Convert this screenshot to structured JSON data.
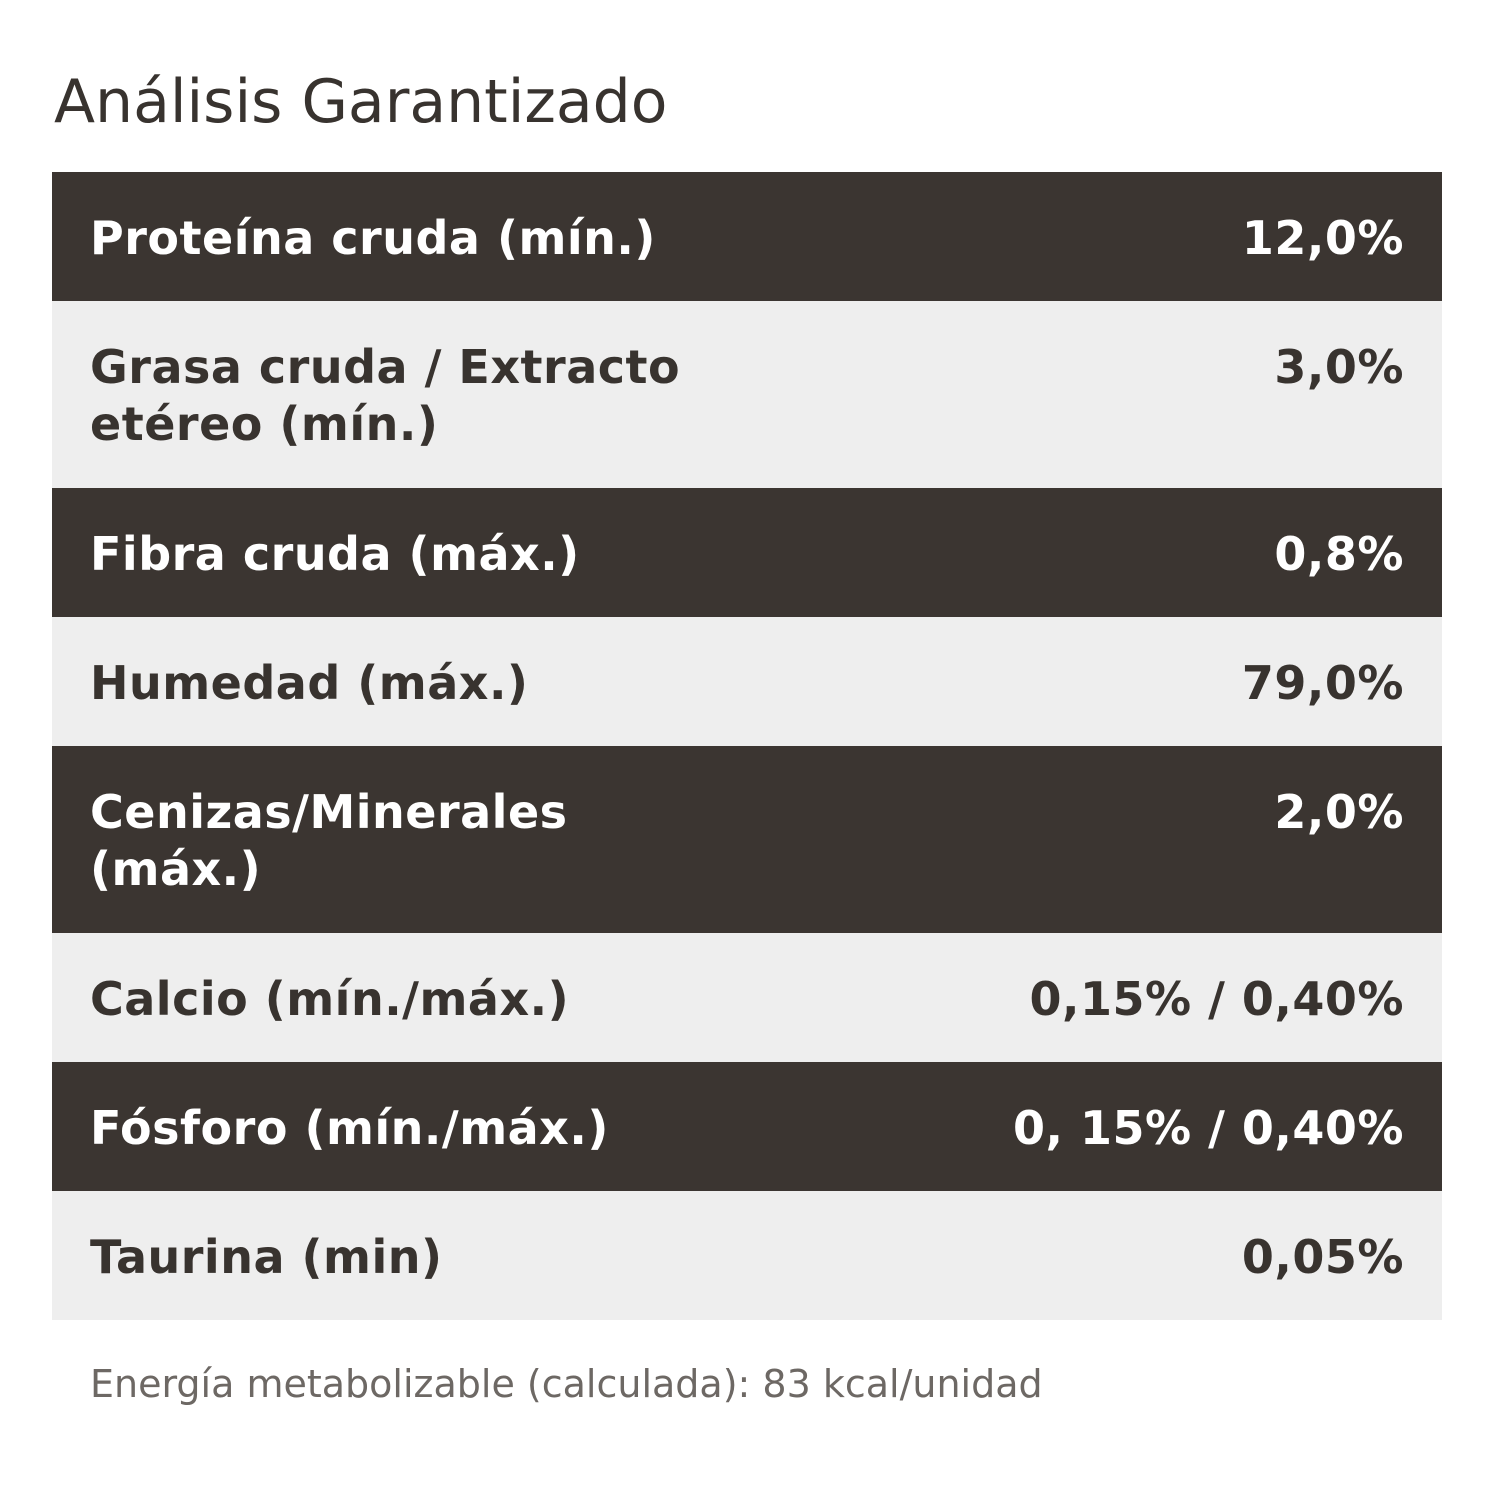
{
  "title": "Análisis Garantizado",
  "rows": [
    {
      "label": "Proteína cruda (mín.)",
      "value": "12,0%"
    },
    {
      "label": "Grasa cruda / Extracto etéreo (mín.)",
      "value": "3,0%"
    },
    {
      "label": "Fibra cruda (máx.)",
      "value": "0,8%"
    },
    {
      "label": "Humedad (máx.)",
      "value": "79,0%"
    },
    {
      "label": "Cenizas/Minerales (máx.)",
      "value": "2,0%"
    },
    {
      "label": "Calcio (mín./máx.)",
      "value": "0,15% / 0,40%"
    },
    {
      "label": "Fósforo (mín./máx.)",
      "value": "0, 15% / 0,40%"
    },
    {
      "label": "Taurina (min)",
      "value": "0,05%"
    }
  ],
  "footnote": "Energía metabolizable (calculada): 83 kcal/unidad",
  "colors": {
    "dark_row": "#3b3531",
    "light_row": "#eeeeee",
    "title_text": "#38332f",
    "footnote_text": "#6d6864"
  }
}
